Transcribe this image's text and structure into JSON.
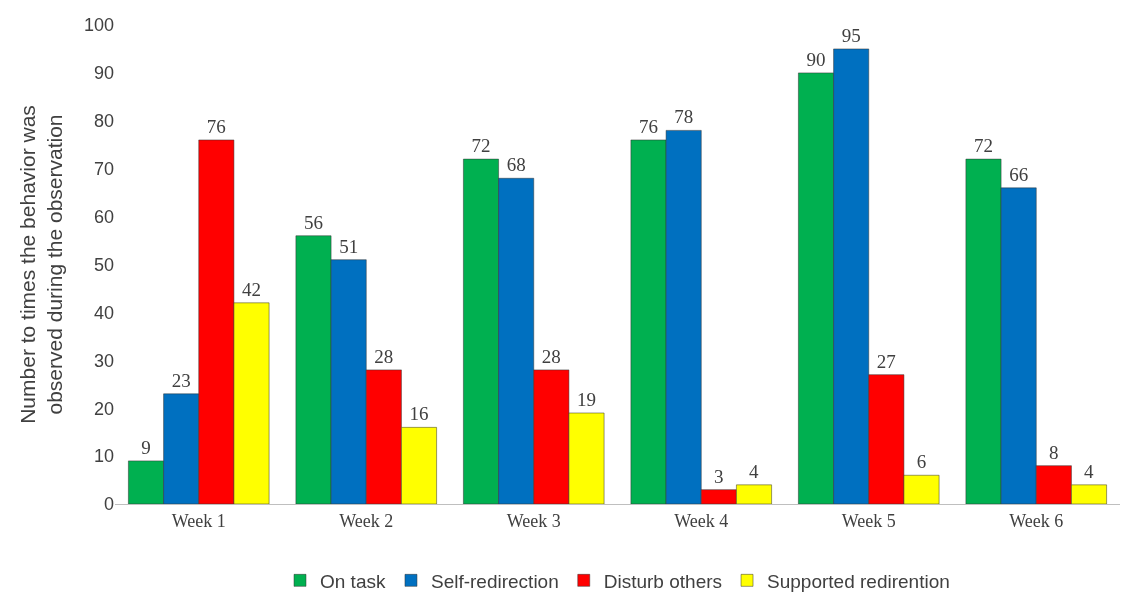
{
  "chart_data": {
    "type": "bar",
    "ylabel": "Number to times the behavior was\nobserved during the observation",
    "categories": [
      "Week 1",
      "Week 2",
      "Week 3",
      "Week 4",
      "Week 5",
      "Week 6"
    ],
    "series": [
      {
        "name": "On task",
        "color": "#00b050",
        "values": [
          9,
          56,
          72,
          76,
          90,
          72
        ]
      },
      {
        "name": "Self-redirection",
        "color": "#0070c0",
        "values": [
          23,
          51,
          68,
          78,
          95,
          66
        ]
      },
      {
        "name": "Disturb others",
        "color": "#ff0000",
        "values": [
          76,
          28,
          28,
          3,
          27,
          8
        ]
      },
      {
        "name": "Supported redirention",
        "color": "#ffff00",
        "values": [
          42,
          16,
          19,
          4,
          6,
          4
        ]
      }
    ],
    "ylim": [
      0,
      100
    ],
    "yticks": [
      0,
      10,
      20,
      30,
      40,
      50,
      60,
      70,
      80,
      90,
      100
    ],
    "legend": "bottom",
    "data_labels": true
  }
}
